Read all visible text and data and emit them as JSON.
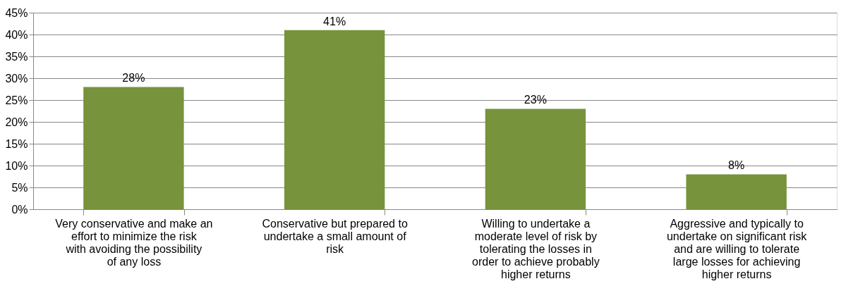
{
  "chart_data": {
    "type": "bar",
    "categories": [
      "Very conservative and make an effort  to minimize the risk with avoiding the possibility of any loss",
      "Conservative but prepared to undertake a small amount of risk",
      "Willing to undertake a moderate level of risk by tolerating the  losses in order to achieve probably higher returns",
      "Aggressive and typically to undertake on significant risk and are willing to tolerate large losses for achieving higher returns"
    ],
    "values": [
      28,
      41,
      23,
      8
    ],
    "value_labels": [
      "28%",
      "41%",
      "23%",
      "8%"
    ],
    "color": "#77933c",
    "ylim": [
      0,
      45
    ],
    "yticks": [
      {
        "value": 0,
        "label": "0%"
      },
      {
        "value": 5,
        "label": "5%"
      },
      {
        "value": 10,
        "label": "10%"
      },
      {
        "value": 15,
        "label": "15%"
      },
      {
        "value": 20,
        "label": "20%"
      },
      {
        "value": 25,
        "label": "25%"
      },
      {
        "value": 30,
        "label": "30%"
      },
      {
        "value": 35,
        "label": "35%"
      },
      {
        "value": 40,
        "label": "40%"
      },
      {
        "value": 45,
        "label": "45%"
      }
    ],
    "grid": "y"
  }
}
